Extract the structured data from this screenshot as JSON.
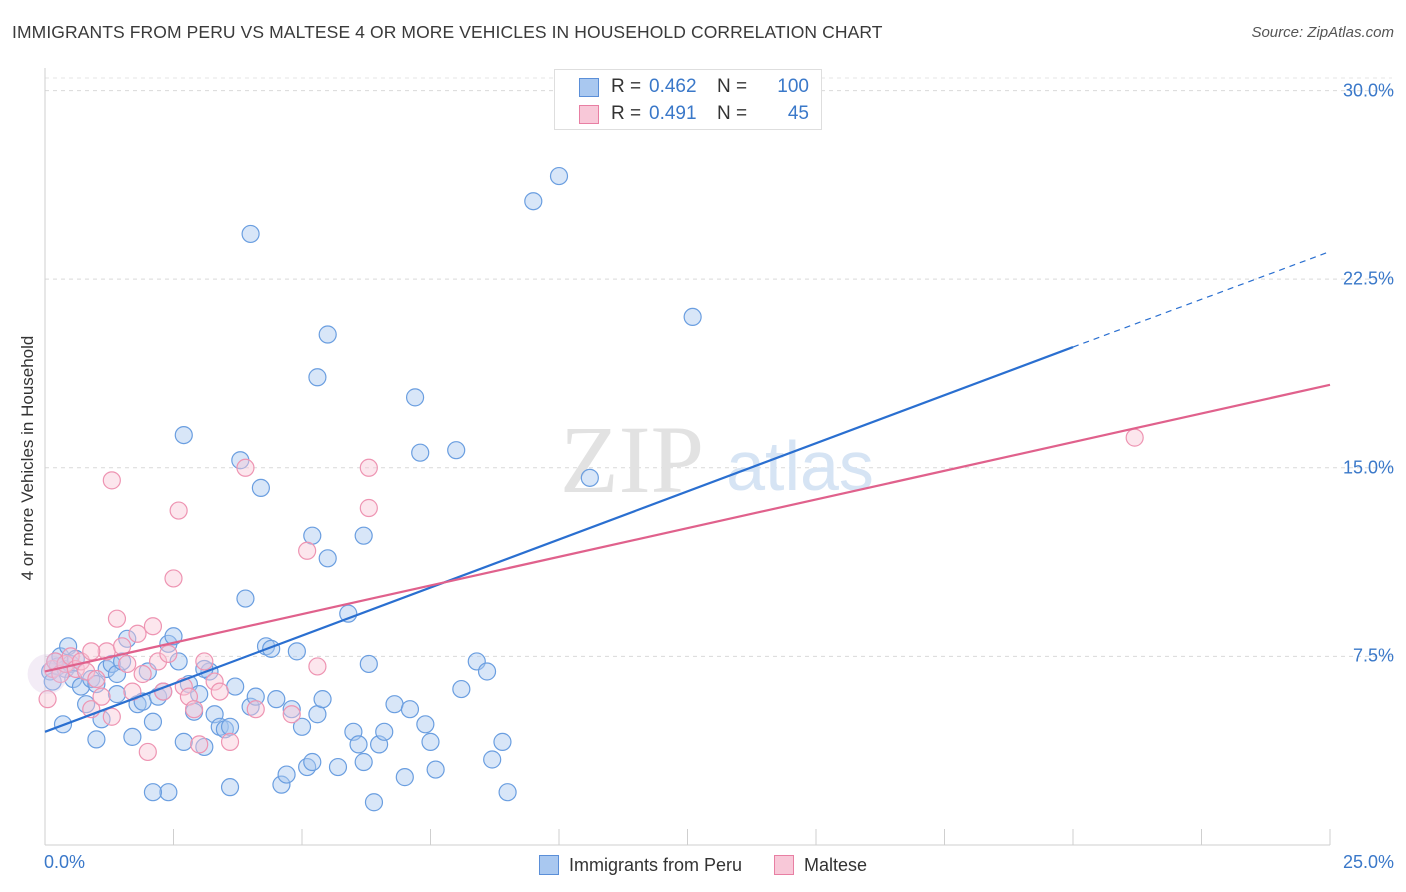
{
  "title": "IMMIGRANTS FROM PERU VS MALTESE 4 OR MORE VEHICLES IN HOUSEHOLD CORRELATION CHART",
  "source": "Source: ZipAtlas.com",
  "watermark": {
    "zip": "ZIP",
    "atlas": "atlas"
  },
  "legend_top": {
    "rows": [
      {
        "r_label": "R =",
        "r_value": "0.462",
        "n_label": "N =",
        "n_value": "100",
        "color": "#a9c8f0",
        "border": "#5b8fd8"
      },
      {
        "r_label": "R =",
        "r_value": "0.491",
        "n_label": "N =",
        "n_value": "45",
        "color": "#f8c8d8",
        "border": "#e87fa3"
      }
    ]
  },
  "legend_bottom": [
    {
      "label": "Immigrants from Peru",
      "color": "#a9c8f0",
      "border": "#5b8fd8"
    },
    {
      "label": "Maltese",
      "color": "#f8c8d8",
      "border": "#e87fa3"
    }
  ],
  "x_tick_left": "0.0%",
  "x_tick_right": "25.0%",
  "y_ticks": [
    {
      "value": 30.0,
      "label": "30.0%"
    },
    {
      "value": 22.5,
      "label": "22.5%"
    },
    {
      "value": 15.0,
      "label": "15.0%"
    },
    {
      "value": 7.5,
      "label": "7.5%"
    }
  ],
  "chart_data": {
    "type": "scatter",
    "title": "IMMIGRANTS FROM PERU VS MALTESE 4 OR MORE VEHICLES IN HOUSEHOLD CORRELATION CHART",
    "xlabel": "",
    "ylabel": "4 or more Vehicles in Household",
    "xlim": [
      0,
      25
    ],
    "ylim": [
      0,
      30.5
    ],
    "legend_position": "bottom-center",
    "grid": true,
    "series": [
      {
        "name": "Immigrants from Peru",
        "color": "#6a9ee0",
        "R": 0.462,
        "N": 100,
        "trend": {
          "x0": 0,
          "y0": 4.5,
          "x1": 20,
          "y1": 19.8,
          "dashed_to_x": 25,
          "dashed_to_y": 23.6,
          "color": "#2a6fd0"
        },
        "points": [
          [
            0.1,
            6.9
          ],
          [
            0.15,
            6.5
          ],
          [
            0.2,
            7.3
          ],
          [
            0.25,
            7.1
          ],
          [
            0.3,
            7.5
          ],
          [
            0.35,
            4.8
          ],
          [
            0.4,
            7.0
          ],
          [
            0.45,
            7.9
          ],
          [
            0.5,
            7.2
          ],
          [
            0.55,
            6.6
          ],
          [
            0.6,
            7.4
          ],
          [
            0.7,
            6.3
          ],
          [
            0.8,
            5.6
          ],
          [
            0.9,
            6.6
          ],
          [
            1.0,
            6.4
          ],
          [
            1.1,
            5.0
          ],
          [
            1.2,
            7.0
          ],
          [
            1.3,
            7.2
          ],
          [
            1.4,
            6.8
          ],
          [
            1.5,
            7.3
          ],
          [
            1.6,
            8.2
          ],
          [
            1.7,
            4.3
          ],
          [
            1.8,
            5.6
          ],
          [
            1.9,
            5.7
          ],
          [
            2.0,
            6.9
          ],
          [
            2.1,
            4.9
          ],
          [
            2.2,
            5.9
          ],
          [
            2.3,
            6.1
          ],
          [
            2.4,
            8.0
          ],
          [
            2.5,
            8.3
          ],
          [
            2.6,
            7.3
          ],
          [
            2.7,
            4.1
          ],
          [
            2.8,
            6.4
          ],
          [
            2.9,
            5.3
          ],
          [
            3.0,
            6.0
          ],
          [
            3.1,
            3.9
          ],
          [
            3.2,
            6.9
          ],
          [
            3.3,
            5.2
          ],
          [
            3.4,
            4.7
          ],
          [
            3.5,
            4.6
          ],
          [
            3.6,
            4.7
          ],
          [
            3.7,
            6.3
          ],
          [
            3.8,
            15.3
          ],
          [
            3.9,
            9.8
          ],
          [
            4.0,
            5.5
          ],
          [
            4.1,
            5.9
          ],
          [
            4.2,
            14.2
          ],
          [
            4.3,
            7.9
          ],
          [
            4.4,
            7.8
          ],
          [
            4.5,
            5.8
          ],
          [
            4.6,
            2.4
          ],
          [
            4.7,
            2.8
          ],
          [
            4.8,
            5.4
          ],
          [
            4.9,
            7.7
          ],
          [
            5.0,
            4.7
          ],
          [
            5.1,
            3.1
          ],
          [
            5.2,
            3.3
          ],
          [
            5.3,
            5.2
          ],
          [
            5.4,
            5.8
          ],
          [
            5.5,
            11.4
          ],
          [
            5.9,
            9.2
          ],
          [
            2.7,
            16.3
          ],
          [
            5.2,
            12.3
          ],
          [
            5.3,
            18.6
          ],
          [
            5.5,
            20.3
          ],
          [
            6.0,
            4.5
          ],
          [
            6.1,
            4.0
          ],
          [
            6.2,
            3.3
          ],
          [
            6.3,
            7.2
          ],
          [
            6.2,
            12.3
          ],
          [
            6.4,
            1.7
          ],
          [
            6.5,
            4.0
          ],
          [
            6.6,
            4.5
          ],
          [
            6.8,
            5.6
          ],
          [
            7.0,
            2.7
          ],
          [
            7.1,
            5.4
          ],
          [
            7.2,
            17.8
          ],
          [
            7.3,
            15.6
          ],
          [
            7.4,
            4.8
          ],
          [
            7.5,
            4.1
          ],
          [
            7.6,
            3.0
          ],
          [
            8.0,
            15.7
          ],
          [
            8.1,
            6.2
          ],
          [
            8.4,
            7.3
          ],
          [
            8.6,
            6.9
          ],
          [
            8.7,
            3.4
          ],
          [
            8.9,
            4.1
          ],
          [
            9.0,
            2.1
          ],
          [
            9.5,
            25.6
          ],
          [
            10.0,
            26.6
          ],
          [
            10.6,
            14.6
          ],
          [
            12.6,
            21.0
          ],
          [
            2.4,
            2.1
          ],
          [
            2.1,
            2.1
          ],
          [
            3.6,
            2.3
          ],
          [
            1.0,
            4.2
          ],
          [
            1.4,
            6.0
          ],
          [
            3.1,
            7.0
          ],
          [
            4.0,
            24.3
          ],
          [
            5.7,
            3.1
          ]
        ]
      },
      {
        "name": "Maltese",
        "color": "#ee94b2",
        "R": 0.491,
        "N": 45,
        "trend": {
          "x0": 0,
          "y0": 6.9,
          "x1": 25,
          "y1": 18.3,
          "color": "#e0618c"
        },
        "points": [
          [
            0.05,
            5.8
          ],
          [
            0.15,
            7.0
          ],
          [
            0.2,
            7.3
          ],
          [
            0.3,
            6.8
          ],
          [
            0.4,
            7.2
          ],
          [
            0.5,
            7.5
          ],
          [
            0.6,
            7.0
          ],
          [
            0.7,
            7.3
          ],
          [
            0.8,
            6.9
          ],
          [
            0.9,
            5.4
          ],
          [
            1.0,
            6.6
          ],
          [
            1.1,
            5.9
          ],
          [
            1.2,
            7.7
          ],
          [
            1.3,
            5.1
          ],
          [
            1.4,
            9.0
          ],
          [
            1.5,
            7.9
          ],
          [
            1.6,
            7.2
          ],
          [
            1.7,
            6.1
          ],
          [
            1.8,
            8.4
          ],
          [
            1.9,
            6.8
          ],
          [
            2.0,
            3.7
          ],
          [
            2.1,
            8.7
          ],
          [
            2.2,
            7.3
          ],
          [
            2.3,
            6.1
          ],
          [
            2.4,
            7.6
          ],
          [
            2.5,
            10.6
          ],
          [
            2.6,
            13.3
          ],
          [
            2.7,
            6.3
          ],
          [
            2.8,
            5.9
          ],
          [
            2.9,
            5.4
          ],
          [
            3.0,
            4.0
          ],
          [
            3.1,
            7.3
          ],
          [
            3.3,
            6.5
          ],
          [
            3.4,
            6.1
          ],
          [
            3.6,
            4.1
          ],
          [
            3.9,
            15.0
          ],
          [
            4.1,
            5.4
          ],
          [
            4.8,
            5.2
          ],
          [
            5.1,
            11.7
          ],
          [
            5.3,
            7.1
          ],
          [
            6.3,
            15.0
          ],
          [
            6.3,
            13.4
          ],
          [
            1.3,
            14.5
          ],
          [
            0.9,
            7.7
          ],
          [
            21.2,
            16.2
          ]
        ]
      }
    ]
  }
}
